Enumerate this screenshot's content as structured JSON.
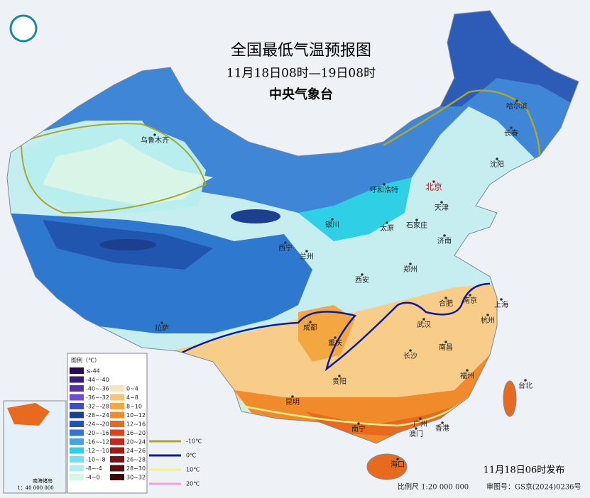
{
  "header": {
    "title": "全国最低气温预报图",
    "subtitle": "11月18日08时—19日08时",
    "issuer": "中央气象台"
  },
  "cities": [
    "乌鲁木齐",
    "哈尔滨",
    "长春",
    "沈阳",
    "北京",
    "天津",
    "呼和浩特",
    "银川",
    "太原",
    "石家庄",
    "西宁",
    "兰州",
    "济南",
    "西安",
    "郑州",
    "合肥",
    "南京",
    "上海",
    "杭州",
    "武汉",
    "成都",
    "重庆",
    "拉萨",
    "长沙",
    "南昌",
    "福州",
    "台北",
    "贵阳",
    "昆明",
    "南宁",
    "广州",
    "澳门",
    "香港",
    "海口"
  ],
  "legend": {
    "title": "图例（℃）",
    "cold": [
      {
        "label": "≤-44",
        "color": "#2a0a4a"
      },
      {
        "label": "-44~-40",
        "color": "#3b1a7a"
      },
      {
        "label": "-40~-36",
        "color": "#5a2fa8"
      },
      {
        "label": "-36~-32",
        "color": "#6e4fd0"
      },
      {
        "label": "-32~-28",
        "color": "#4050b8"
      },
      {
        "label": "-28~-24",
        "color": "#1c3f8f"
      },
      {
        "label": "-24~-20",
        "color": "#2156b0"
      },
      {
        "label": "-20~-16",
        "color": "#2f78d0"
      },
      {
        "label": "-16~-12",
        "color": "#4aa0e4"
      },
      {
        "label": "-12~-10",
        "color": "#2fd0e6"
      },
      {
        "label": "-10~-8",
        "color": "#6fe3e8"
      },
      {
        "label": "-8~-4",
        "color": "#b0eef0"
      },
      {
        "label": "-4~0",
        "color": "#d4f5e8"
      }
    ],
    "warm": [
      {
        "label": "0~4",
        "color": "#fbe3b8"
      },
      {
        "label": "4~8",
        "color": "#f8c47a"
      },
      {
        "label": "8~10",
        "color": "#f4a640"
      },
      {
        "label": "10~12",
        "color": "#f08a2a"
      },
      {
        "label": "12~16",
        "color": "#e86a1e"
      },
      {
        "label": "16~20",
        "color": "#d8461a"
      },
      {
        "label": "20~24",
        "color": "#c0281e"
      },
      {
        "label": "24~26",
        "color": "#9c1a1a"
      },
      {
        "label": "26~28",
        "color": "#7a1414"
      },
      {
        "label": "28~30",
        "color": "#5a0f0f"
      },
      {
        "label": "30~32",
        "color": "#3a0808"
      }
    ],
    "lines": [
      {
        "label": "-10℃",
        "color": "#a8a830"
      },
      {
        "label": "0℃",
        "color": "#0a1e9a"
      },
      {
        "label": "10℃",
        "color": "#f4f08a"
      },
      {
        "label": "20℃",
        "color": "#f4a0d8"
      }
    ]
  },
  "inset": {
    "title": "南海诸岛",
    "scale": "1：40 000 000"
  },
  "footer": {
    "issued": "11月18日06时发布",
    "scale": "比例尺  1:20 000 000",
    "review": "审图号：GS京(2024)0236号"
  }
}
